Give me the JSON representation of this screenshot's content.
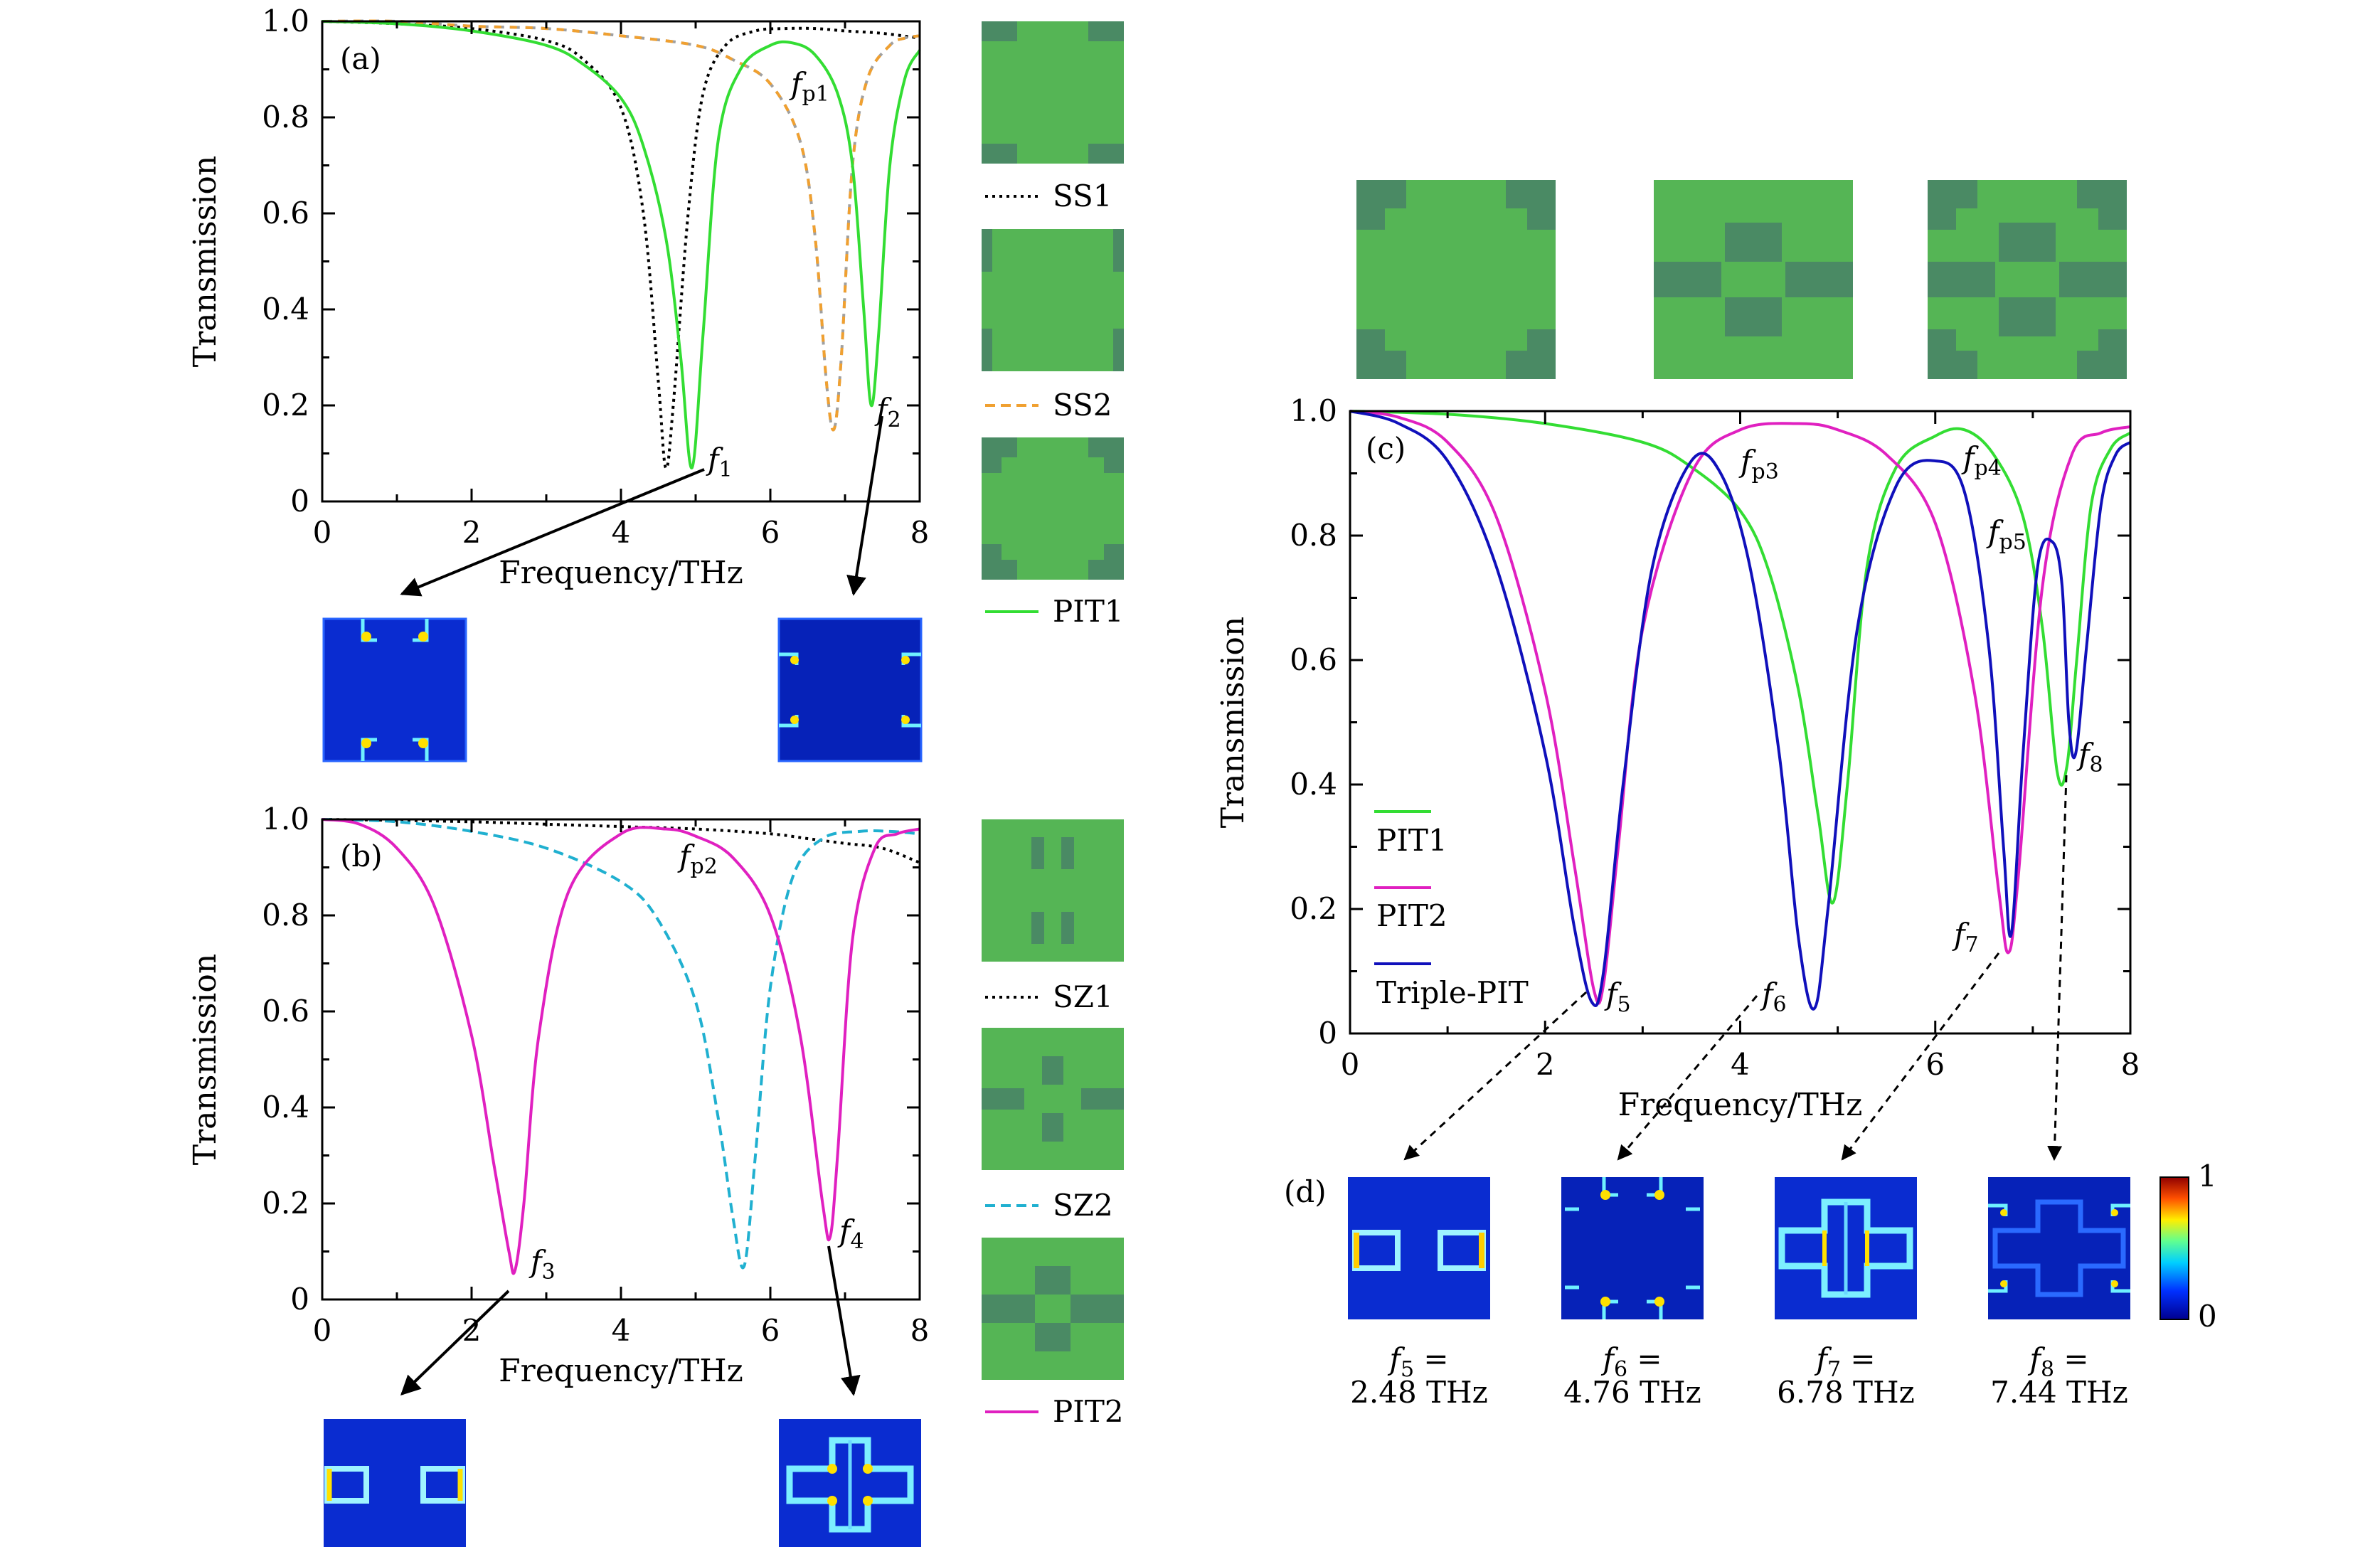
{
  "colors": {
    "ss1": "#000000",
    "ss2_orange": "#f0a030",
    "ss2_gray": "#a0a0a0",
    "pit1": "#33dd33",
    "pit2": "#e020c0",
    "sz2": "#20b0d0",
    "triple": "#1010bb",
    "structure_bg": "#55b555",
    "structure_metal": "#4a8a64",
    "field_bg": "#0a2cd0"
  },
  "field_maps": {
    "f1": "field-map-edge-corners",
    "f2": "field-map-side-corners",
    "f3": "field-map-side-boxes",
    "f4": "field-map-cross",
    "f5": "field-map-side-boxes",
    "f6": "field-map-corner-hotspots",
    "f7": "field-map-cross",
    "f8": "field-map-weak-cross"
  },
  "panel_c_structures": [
    "structure-pit1-cross",
    "structure-sz1-sz2-bars",
    "structure-triple-pit"
  ],
  "chart_data": [
    {
      "type": "line",
      "panel_label": "(a)",
      "xlabel": "Frequency/THz",
      "ylabel": "Transmission",
      "xlim": [
        0,
        8
      ],
      "ylim": [
        0,
        1
      ],
      "xticks": [
        "0",
        "2",
        "4",
        "6",
        "8"
      ],
      "yticks": [
        "0",
        "0.2",
        "0.4",
        "0.6",
        "0.8",
        "1.0"
      ],
      "series": [
        {
          "name": "SS1",
          "style": "dotted",
          "color": "#000000",
          "x": [
            0,
            1,
            2,
            3,
            3.5,
            4.0,
            4.3,
            4.5,
            4.6,
            4.7,
            4.9,
            5.1,
            5.4,
            5.8,
            6.2,
            6.6,
            7.0,
            7.5,
            8.0
          ],
          "y": [
            1.0,
            0.995,
            0.985,
            0.96,
            0.92,
            0.82,
            0.6,
            0.25,
            0.07,
            0.2,
            0.6,
            0.85,
            0.95,
            0.98,
            0.985,
            0.985,
            0.98,
            0.975,
            0.965
          ]
        },
        {
          "name": "SS2",
          "style": "dashed",
          "color": "#f0a030",
          "x": [
            0,
            1,
            2,
            3,
            4,
            5,
            5.5,
            6.0,
            6.4,
            6.6,
            6.75,
            6.85,
            6.95,
            7.1,
            7.3,
            7.6,
            7.8,
            8.0
          ],
          "y": [
            1.0,
            1.0,
            0.99,
            0.985,
            0.97,
            0.95,
            0.92,
            0.87,
            0.75,
            0.55,
            0.25,
            0.15,
            0.3,
            0.7,
            0.88,
            0.95,
            0.965,
            0.97
          ]
        },
        {
          "name": "PIT1",
          "style": "solid",
          "color": "#33dd33",
          "x": [
            0,
            1,
            2,
            3,
            3.5,
            4.0,
            4.3,
            4.6,
            4.8,
            4.95,
            5.1,
            5.3,
            5.6,
            6.0,
            6.3,
            6.6,
            6.9,
            7.1,
            7.25,
            7.35,
            7.45,
            7.6,
            7.8,
            8.0
          ],
          "y": [
            1.0,
            0.995,
            0.98,
            0.95,
            0.91,
            0.84,
            0.74,
            0.55,
            0.3,
            0.07,
            0.35,
            0.75,
            0.9,
            0.95,
            0.955,
            0.93,
            0.85,
            0.7,
            0.4,
            0.2,
            0.35,
            0.7,
            0.88,
            0.94
          ]
        }
      ],
      "annotations": [
        "fp1",
        "f1",
        "f2"
      ]
    },
    {
      "type": "line",
      "panel_label": "(b)",
      "xlabel": "Frequency/THz",
      "ylabel": "Transmission",
      "xlim": [
        0,
        8
      ],
      "ylim": [
        0,
        1
      ],
      "xticks": [
        "0",
        "2",
        "4",
        "6",
        "8"
      ],
      "yticks": [
        "0",
        "0.2",
        "0.4",
        "0.6",
        "0.8",
        "1.0"
      ],
      "series": [
        {
          "name": "SZ1",
          "style": "dotted",
          "color": "#000000",
          "x": [
            0,
            1,
            2,
            3,
            4,
            5,
            6,
            6.5,
            7,
            7.5,
            8.0
          ],
          "y": [
            1.0,
            0.998,
            0.995,
            0.99,
            0.985,
            0.98,
            0.97,
            0.96,
            0.95,
            0.94,
            0.91
          ]
        },
        {
          "name": "SZ2",
          "style": "dashed",
          "color": "#20b0d0",
          "x": [
            0,
            1,
            2,
            3,
            4,
            4.5,
            5.0,
            5.3,
            5.5,
            5.65,
            5.8,
            6.0,
            6.3,
            6.7,
            7.2,
            7.6,
            8.0
          ],
          "y": [
            1.0,
            0.995,
            0.975,
            0.94,
            0.87,
            0.79,
            0.62,
            0.38,
            0.17,
            0.07,
            0.3,
            0.65,
            0.88,
            0.96,
            0.975,
            0.975,
            0.97
          ]
        },
        {
          "name": "PIT2",
          "style": "solid",
          "color": "#e020c0",
          "x": [
            0,
            0.5,
            1.0,
            1.5,
            2.0,
            2.3,
            2.5,
            2.58,
            2.7,
            2.9,
            3.3,
            4.0,
            4.6,
            5.0,
            5.5,
            6.0,
            6.4,
            6.7,
            6.8,
            6.9,
            7.1,
            7.4,
            7.7,
            8.0
          ],
          "y": [
            1.0,
            0.99,
            0.94,
            0.82,
            0.55,
            0.28,
            0.1,
            0.06,
            0.2,
            0.55,
            0.85,
            0.97,
            0.98,
            0.965,
            0.92,
            0.8,
            0.55,
            0.2,
            0.13,
            0.3,
            0.75,
            0.94,
            0.97,
            0.98
          ]
        }
      ],
      "annotations": [
        "fp2",
        "f3",
        "f4"
      ]
    },
    {
      "type": "line",
      "panel_label": "(c)",
      "xlabel": "Frequency/THz",
      "ylabel": "Transmission",
      "xlim": [
        0,
        8
      ],
      "ylim": [
        0,
        1
      ],
      "xticks": [
        "0",
        "2",
        "4",
        "6",
        "8"
      ],
      "yticks": [
        "0",
        "0.2",
        "0.4",
        "0.6",
        "0.8",
        "1.0"
      ],
      "legend": [
        "PIT1",
        "PIT2",
        "Triple-PIT"
      ],
      "series": [
        {
          "name": "PIT1",
          "style": "solid",
          "color": "#33dd33",
          "x": [
            0,
            1,
            2,
            3,
            3.5,
            4.0,
            4.3,
            4.6,
            4.8,
            4.95,
            5.1,
            5.3,
            5.6,
            6.0,
            6.3,
            6.6,
            6.9,
            7.1,
            7.25,
            7.35,
            7.45,
            7.6,
            7.8,
            8.0
          ],
          "y": [
            1.0,
            0.995,
            0.98,
            0.95,
            0.91,
            0.84,
            0.74,
            0.55,
            0.35,
            0.21,
            0.4,
            0.75,
            0.91,
            0.96,
            0.97,
            0.93,
            0.83,
            0.65,
            0.42,
            0.43,
            0.6,
            0.85,
            0.94,
            0.965
          ]
        },
        {
          "name": "PIT2",
          "style": "solid",
          "color": "#e020c0",
          "x": [
            0,
            0.5,
            1.0,
            1.5,
            2.0,
            2.3,
            2.5,
            2.6,
            2.75,
            3.0,
            3.5,
            4.0,
            4.6,
            5.0,
            5.5,
            6.0,
            6.4,
            6.65,
            6.75,
            6.85,
            7.1,
            7.4,
            7.7,
            8.0
          ],
          "y": [
            1.0,
            0.99,
            0.95,
            0.83,
            0.55,
            0.27,
            0.07,
            0.08,
            0.3,
            0.65,
            0.9,
            0.97,
            0.98,
            0.97,
            0.93,
            0.82,
            0.55,
            0.23,
            0.13,
            0.25,
            0.72,
            0.93,
            0.965,
            0.975
          ]
        },
        {
          "name": "Triple-PIT",
          "style": "solid",
          "color": "#1010bb",
          "x": [
            0,
            0.5,
            1.0,
            1.5,
            2.0,
            2.3,
            2.48,
            2.6,
            2.8,
            3.1,
            3.5,
            3.8,
            4.1,
            4.4,
            4.6,
            4.76,
            4.9,
            5.2,
            5.6,
            6.0,
            6.3,
            6.55,
            6.7,
            6.78,
            6.9,
            7.05,
            7.2,
            7.3,
            7.37,
            7.44,
            7.55,
            7.7,
            7.85,
            8.0
          ],
          "y": [
            1.0,
            0.98,
            0.92,
            0.75,
            0.45,
            0.17,
            0.05,
            0.1,
            0.4,
            0.75,
            0.92,
            0.9,
            0.75,
            0.45,
            0.15,
            0.04,
            0.2,
            0.65,
            0.88,
            0.92,
            0.87,
            0.62,
            0.3,
            0.16,
            0.45,
            0.75,
            0.79,
            0.72,
            0.5,
            0.45,
            0.62,
            0.85,
            0.93,
            0.95
          ]
        }
      ],
      "annotations": [
        "fp3",
        "fp4",
        "fp5",
        "f5",
        "f6",
        "f7",
        "f8"
      ]
    }
  ],
  "labels": {
    "panel_a": "(a)",
    "panel_b": "(b)",
    "panel_c": "(c)",
    "panel_d": "(d)",
    "xlabel": "Frequency/THz",
    "ylabel": "Transmission",
    "f_sym": "f",
    "eq": " =",
    "sub_p1": "p1",
    "sub_p2": "p2",
    "sub_p3": "p3",
    "sub_p4": "p4",
    "sub_p5": "p5",
    "sub_1": "1",
    "sub_2": "2",
    "sub_3": "3",
    "sub_4": "4",
    "sub_5": "5",
    "sub_6": "6",
    "sub_7": "7",
    "sub_8": "8",
    "legend_ss1": "SS1",
    "legend_ss2": "SS2",
    "legend_pit1": "PIT1",
    "legend_sz1": "SZ1",
    "legend_sz2": "SZ2",
    "legend_pit2": "PIT2",
    "legend_c_pit1": "PIT1",
    "legend_c_pit2": "PIT2",
    "legend_c_triple": "Triple-PIT",
    "freq5": "2.48 THz",
    "freq6": "4.76 THz",
    "freq7": "6.78 THz",
    "freq8": "7.44 THz",
    "colorbar_max": "1",
    "colorbar_min": "0"
  }
}
